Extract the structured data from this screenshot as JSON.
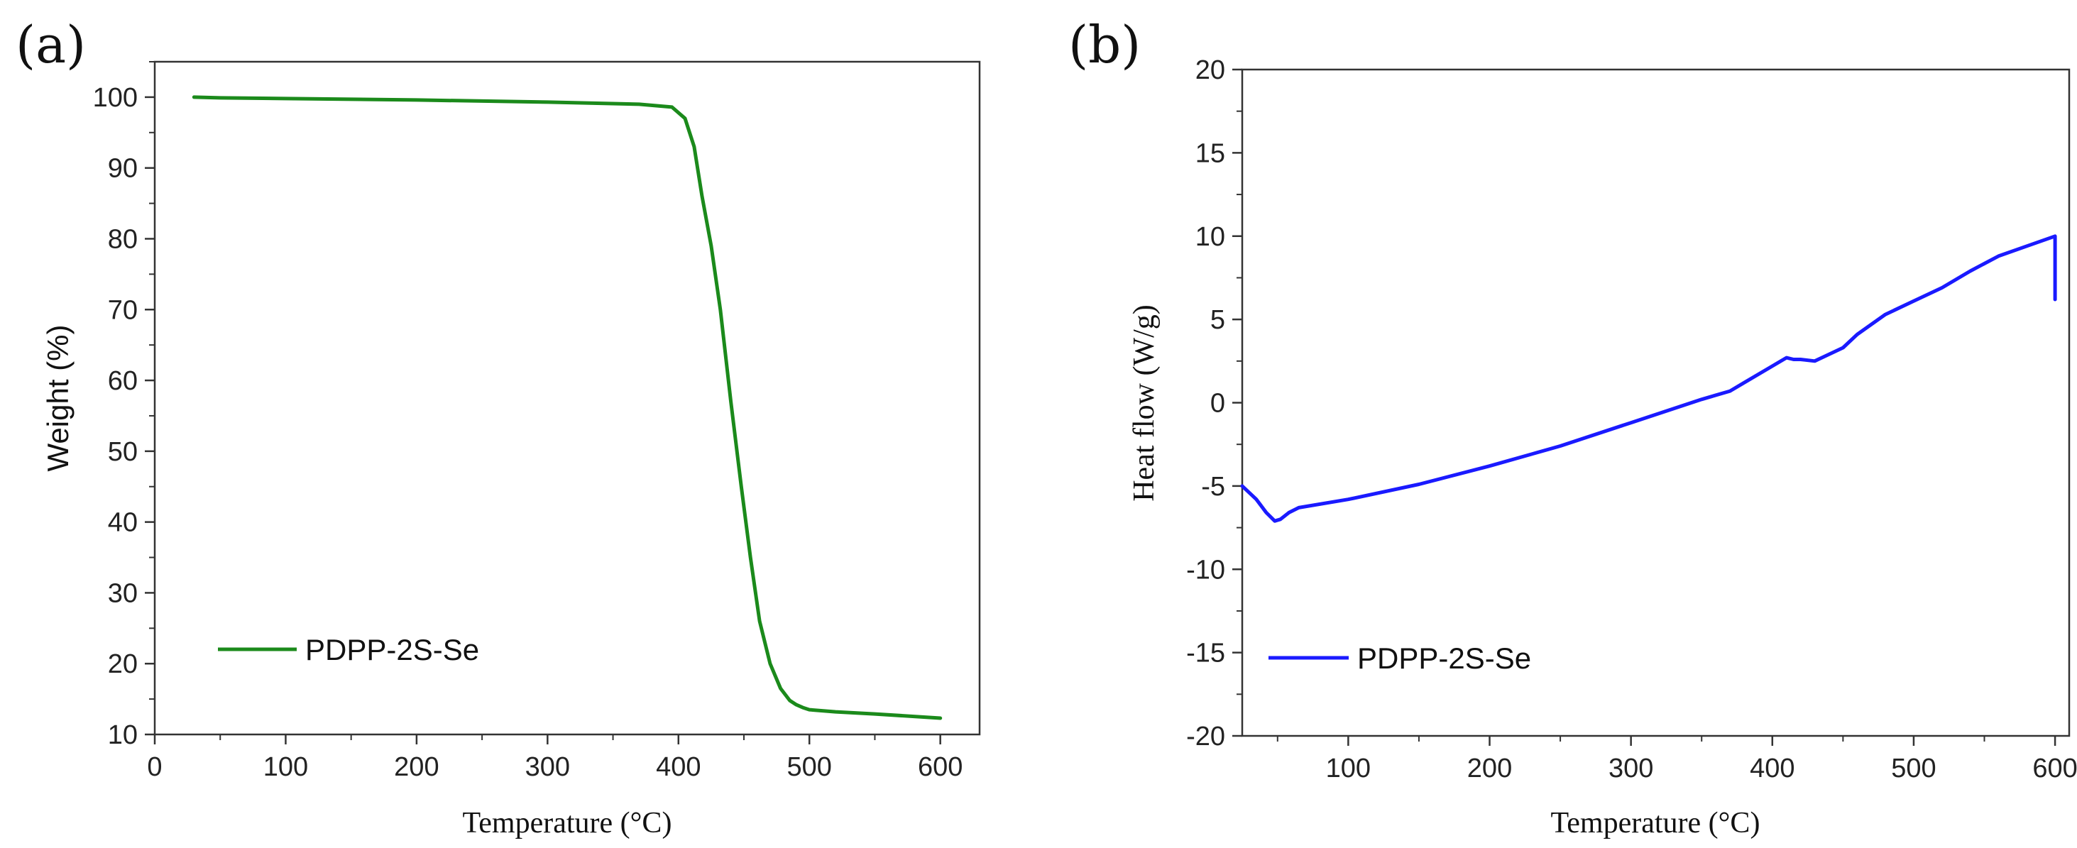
{
  "chart_data": [
    {
      "id": "a",
      "panel_label": "(a)",
      "type": "line",
      "xlabel": "Temperature (°C)",
      "ylabel": "Weight (%)",
      "xlim": [
        0,
        630
      ],
      "ylim": [
        10,
        105
      ],
      "xticks": [
        0,
        100,
        200,
        300,
        400,
        500,
        600
      ],
      "yticks": [
        10,
        20,
        30,
        40,
        50,
        60,
        70,
        80,
        90,
        100
      ],
      "grid": false,
      "legend_position": "bottom-left",
      "series": [
        {
          "name": "PDPP-2S-Se",
          "color": "#1b8a1b",
          "x": [
            30,
            50,
            100,
            200,
            300,
            370,
            395,
            405,
            412,
            418,
            425,
            432,
            440,
            448,
            455,
            462,
            470,
            478,
            485,
            490,
            495,
            500,
            520,
            550,
            600
          ],
          "y": [
            100,
            99.9,
            99.8,
            99.6,
            99.3,
            99.0,
            98.6,
            97.0,
            93.0,
            86.0,
            79.0,
            70.0,
            57.0,
            45.0,
            35.0,
            26.0,
            20.0,
            16.5,
            14.8,
            14.2,
            13.8,
            13.5,
            13.2,
            12.9,
            12.3
          ]
        }
      ]
    },
    {
      "id": "b",
      "panel_label": "(b)",
      "type": "line",
      "xlabel": "Temperature (°C)",
      "ylabel": "Heat flow (W/g)",
      "xlim": [
        25,
        610
      ],
      "ylim": [
        -20,
        20
      ],
      "xticks": [
        100,
        200,
        300,
        400,
        500,
        600
      ],
      "yticks": [
        -20,
        -15,
        -10,
        -5,
        0,
        5,
        10,
        15,
        20
      ],
      "grid": false,
      "legend_position": "bottom-left",
      "series": [
        {
          "name": "PDPP-2S-Se",
          "color": "#1a1aff",
          "x": [
            25,
            35,
            42,
            48,
            52,
            58,
            65,
            100,
            150,
            200,
            250,
            300,
            350,
            370,
            380,
            400,
            410,
            415,
            420,
            430,
            440,
            450,
            460,
            480,
            500,
            520,
            540,
            560,
            580,
            600,
            600
          ],
          "y": [
            -5.0,
            -5.8,
            -6.6,
            -7.1,
            -7.0,
            -6.6,
            -6.3,
            -5.8,
            -4.9,
            -3.8,
            -2.6,
            -1.2,
            0.2,
            0.7,
            1.2,
            2.2,
            2.7,
            2.6,
            2.6,
            2.5,
            2.9,
            3.3,
            4.1,
            5.3,
            6.1,
            6.9,
            7.9,
            8.8,
            9.4,
            10.0,
            6.2
          ]
        }
      ]
    }
  ]
}
